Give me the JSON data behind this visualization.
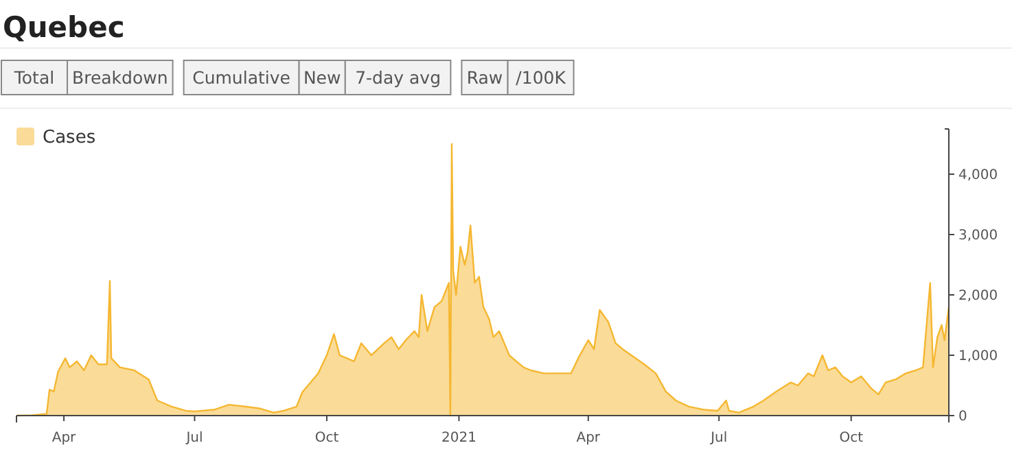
{
  "chart_data": {
    "type": "area",
    "title": "Quebec",
    "annotations": [
      "Total",
      "Breakdown",
      "Cumulative",
      "New",
      "7-day avg",
      "Raw",
      "/100K"
    ],
    "x": [
      "2020-02-28",
      "2020-03-10",
      "2020-03-20",
      "2020-03-22",
      "2020-03-25",
      "2020-03-28",
      "2020-04-02",
      "2020-04-05",
      "2020-04-10",
      "2020-04-15",
      "2020-04-20",
      "2020-04-25",
      "2020-05-01",
      "2020-05-03",
      "2020-05-04",
      "2020-05-10",
      "2020-05-20",
      "2020-05-30",
      "2020-06-05",
      "2020-06-15",
      "2020-06-25",
      "2020-07-01",
      "2020-07-15",
      "2020-07-25",
      "2020-08-05",
      "2020-08-15",
      "2020-08-25",
      "2020-09-01",
      "2020-09-10",
      "2020-09-14",
      "2020-09-25",
      "2020-10-01",
      "2020-10-06",
      "2020-10-10",
      "2020-10-20",
      "2020-10-25",
      "2020-11-01",
      "2020-11-10",
      "2020-11-15",
      "2020-11-20",
      "2020-11-25",
      "2020-12-01",
      "2020-12-04",
      "2020-12-06",
      "2020-12-10",
      "2020-12-15",
      "2020-12-20",
      "2020-12-25",
      "2020-12-26",
      "2020-12-27",
      "2020-12-28",
      "2020-12-30",
      "2021-01-02",
      "2021-01-05",
      "2021-01-07",
      "2021-01-09",
      "2021-01-12",
      "2021-01-15",
      "2021-01-18",
      "2021-01-22",
      "2021-01-25",
      "2021-01-29",
      "2021-02-05",
      "2021-02-10",
      "2021-02-15",
      "2021-02-20",
      "2021-03-01",
      "2021-03-10",
      "2021-03-20",
      "2021-03-25",
      "2021-04-01",
      "2021-04-05",
      "2021-04-09",
      "2021-04-15",
      "2021-04-20",
      "2021-04-25",
      "2021-05-01",
      "2021-05-10",
      "2021-05-18",
      "2021-05-25",
      "2021-06-01",
      "2021-06-10",
      "2021-06-20",
      "2021-06-30",
      "2021-07-06",
      "2021-07-08",
      "2021-07-15",
      "2021-07-20",
      "2021-07-25",
      "2021-08-01",
      "2021-08-10",
      "2021-08-20",
      "2021-08-25",
      "2021-09-01",
      "2021-09-05",
      "2021-09-11",
      "2021-09-15",
      "2021-09-20",
      "2021-09-25",
      "2021-10-01",
      "2021-10-08",
      "2021-10-15",
      "2021-10-20",
      "2021-10-25",
      "2021-11-01",
      "2021-11-08",
      "2021-11-15",
      "2021-11-20",
      "2021-11-25",
      "2021-11-27",
      "2021-11-30",
      "2021-12-03",
      "2021-12-05",
      "2021-12-08"
    ],
    "series": [
      {
        "name": "Cases",
        "color": "#f5b731",
        "values": [
          0,
          5,
          30,
          430,
          400,
          730,
          950,
          800,
          900,
          750,
          1000,
          850,
          850,
          2230,
          950,
          800,
          750,
          600,
          250,
          150,
          80,
          70,
          100,
          180,
          150,
          120,
          50,
          80,
          150,
          390,
          700,
          1000,
          1350,
          1000,
          900,
          1200,
          1000,
          1200,
          1300,
          1100,
          1250,
          1400,
          1300,
          2000,
          1400,
          1800,
          1900,
          2200,
          0,
          4500,
          2400,
          2000,
          2800,
          2500,
          2700,
          3150,
          2200,
          2300,
          1800,
          1600,
          1300,
          1400,
          1000,
          900,
          800,
          750,
          700,
          700,
          700,
          950,
          1250,
          1100,
          1750,
          1550,
          1200,
          1100,
          1000,
          850,
          700,
          400,
          250,
          150,
          100,
          80,
          250,
          80,
          50,
          100,
          150,
          250,
          400,
          550,
          500,
          700,
          650,
          1000,
          750,
          800,
          650,
          550,
          650,
          450,
          350,
          550,
          600,
          700,
          750,
          800,
          2200,
          800,
          1300,
          1500,
          1250,
          1800
        ]
      }
    ],
    "xlim": [
      "2020-02-28",
      "2021-12-08"
    ],
    "xticks": [
      {
        "value": "2020-04-01",
        "label": "Apr"
      },
      {
        "value": "2020-07-01",
        "label": "Jul"
      },
      {
        "value": "2020-10-01",
        "label": "Oct"
      },
      {
        "value": "2021-01-01",
        "label": "2021"
      },
      {
        "value": "2021-04-01",
        "label": "Apr"
      },
      {
        "value": "2021-07-01",
        "label": "Jul"
      },
      {
        "value": "2021-10-01",
        "label": "Oct"
      }
    ],
    "ylim": [
      0,
      4750
    ],
    "yticks": [
      0,
      {
        "value": 1000,
        "label": "1,000"
      },
      {
        "value": 2000,
        "label": "2,000"
      },
      {
        "value": 3000,
        "label": "3,000"
      },
      {
        "value": 4000,
        "label": "4,000"
      }
    ],
    "legend": "top left",
    "grid": false
  }
}
